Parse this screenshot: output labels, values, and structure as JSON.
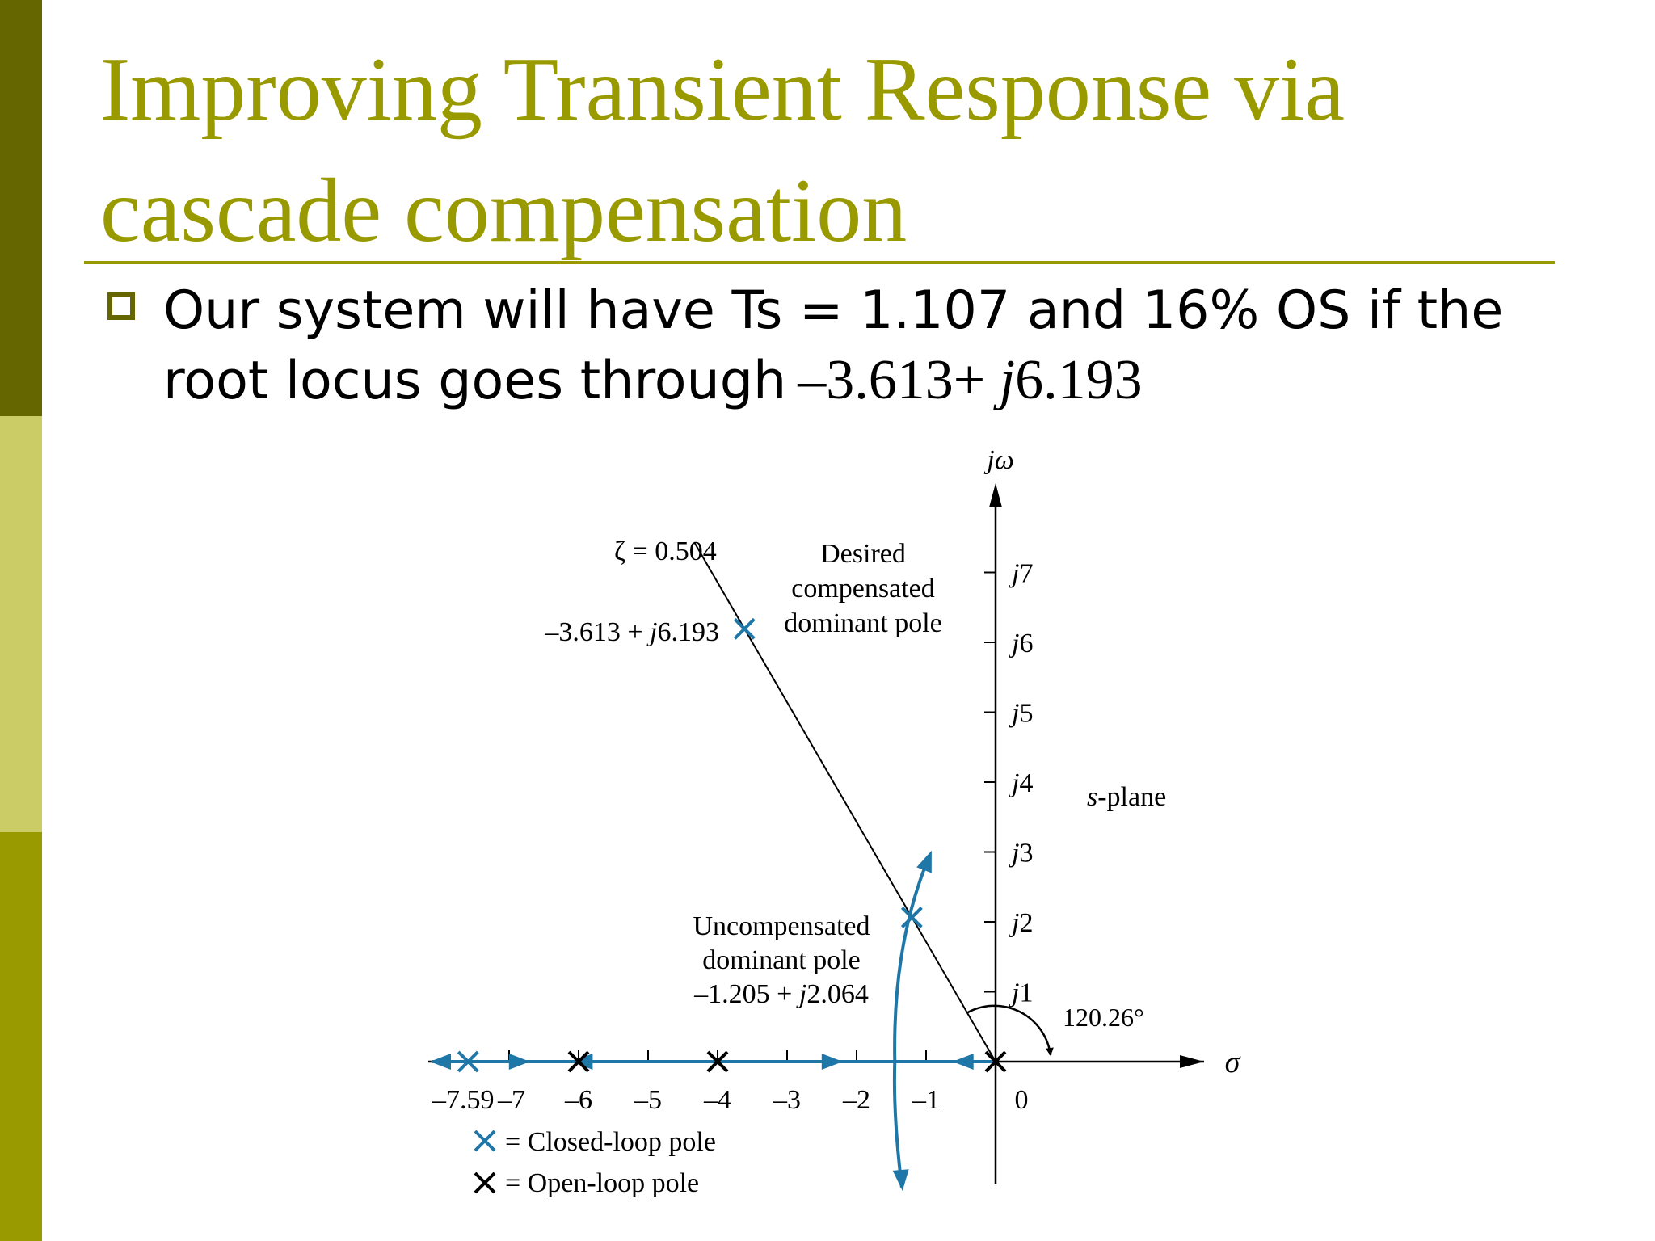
{
  "slide": {
    "title": "Improving Transient Response via cascade compensation",
    "bullet": {
      "text": "Our system will have Ts = 1.107 and 16% OS if the root locus goes through",
      "math_real": "–3.613+",
      "math_j": "j",
      "math_imag": "6.193"
    }
  },
  "colors": {
    "title": "#999900",
    "sidebar_dark": "#666600",
    "sidebar_light": "#cccc66",
    "sidebar_mid": "#999900",
    "closed_loop": "#1f77a8",
    "open_loop": "#000000"
  },
  "diagram": {
    "plane_label": "s-plane",
    "vertical_axis_label": "jω",
    "horizontal_axis_label": "σ",
    "real_ticks": [
      {
        "value": -7.59,
        "label": "–7.59"
      },
      {
        "value": -7,
        "label": "–7"
      },
      {
        "value": -6,
        "label": "–6"
      },
      {
        "value": -5,
        "label": "–5"
      },
      {
        "value": -4,
        "label": "–4"
      },
      {
        "value": -3,
        "label": "–3"
      },
      {
        "value": -2,
        "label": "–2"
      },
      {
        "value": -1,
        "label": "–1"
      },
      {
        "value": 0,
        "label": "0"
      }
    ],
    "imag_ticks": [
      {
        "value": 1,
        "label": "j1"
      },
      {
        "value": 2,
        "label": "j2"
      },
      {
        "value": 3,
        "label": "j3"
      },
      {
        "value": 4,
        "label": "j4"
      },
      {
        "value": 5,
        "label": "j5"
      },
      {
        "value": 6,
        "label": "j6"
      },
      {
        "value": 7,
        "label": "j7"
      }
    ],
    "zeta_label": "ζ = 0.504",
    "angle_label": "120.26°",
    "desired_pole": {
      "real": -3.613,
      "imag": 6.193,
      "value_label": "–3.613 + j6.193",
      "caption": [
        "Desired",
        "compensated",
        "dominant pole"
      ]
    },
    "uncompensated_pole": {
      "real": -1.205,
      "imag": 2.064,
      "caption": [
        "Uncompensated",
        "dominant pole",
        "–1.205 + j2.064"
      ]
    },
    "open_loop_poles": [
      0,
      -4,
      -6
    ],
    "closed_loop_real_pole": -7.59,
    "legend": {
      "closed_loop": "= Closed-loop pole",
      "open_loop": "= Open-loop pole"
    }
  }
}
